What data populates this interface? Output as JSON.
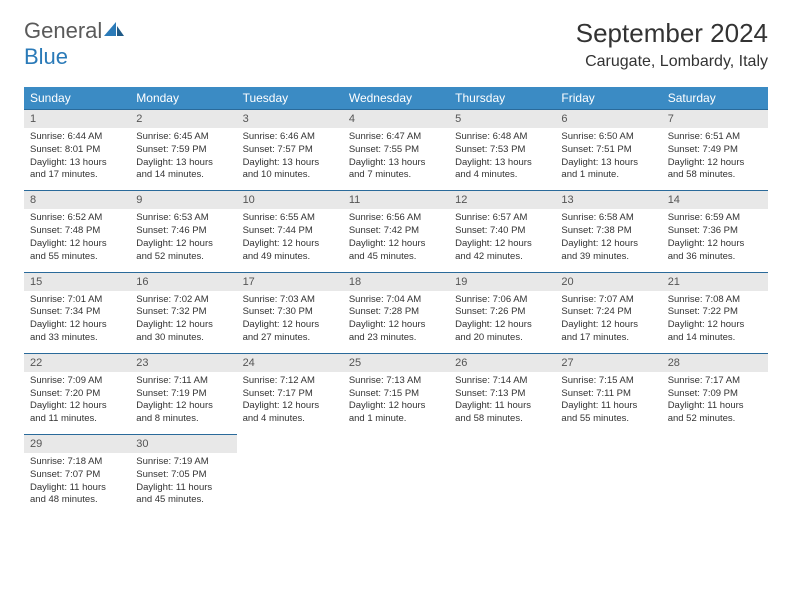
{
  "logo": {
    "text1": "General",
    "text2": "Blue"
  },
  "title": "September 2024",
  "location": "Carugate, Lombardy, Italy",
  "colors": {
    "header_bg": "#3b8bc4",
    "header_text": "#ffffff",
    "daynum_bg": "#e8e8e8",
    "daynum_text": "#555555",
    "cell_bg": "#ffffff",
    "cell_text": "#333333",
    "border": "#2a6a9a",
    "logo_gray": "#5a5a5a",
    "logo_blue": "#2a7ab8"
  },
  "fonts": {
    "title_size": 26,
    "location_size": 16,
    "header_size": 12,
    "daynum_size": 11,
    "cell_size": 9.5
  },
  "dayHeaders": [
    "Sunday",
    "Monday",
    "Tuesday",
    "Wednesday",
    "Thursday",
    "Friday",
    "Saturday"
  ],
  "weeks": [
    {
      "nums": [
        "1",
        "2",
        "3",
        "4",
        "5",
        "6",
        "7"
      ],
      "cells": [
        {
          "sunrise": "Sunrise: 6:44 AM",
          "sunset": "Sunset: 8:01 PM",
          "daylight": "Daylight: 13 hours and 17 minutes."
        },
        {
          "sunrise": "Sunrise: 6:45 AM",
          "sunset": "Sunset: 7:59 PM",
          "daylight": "Daylight: 13 hours and 14 minutes."
        },
        {
          "sunrise": "Sunrise: 6:46 AM",
          "sunset": "Sunset: 7:57 PM",
          "daylight": "Daylight: 13 hours and 10 minutes."
        },
        {
          "sunrise": "Sunrise: 6:47 AM",
          "sunset": "Sunset: 7:55 PM",
          "daylight": "Daylight: 13 hours and 7 minutes."
        },
        {
          "sunrise": "Sunrise: 6:48 AM",
          "sunset": "Sunset: 7:53 PM",
          "daylight": "Daylight: 13 hours and 4 minutes."
        },
        {
          "sunrise": "Sunrise: 6:50 AM",
          "sunset": "Sunset: 7:51 PM",
          "daylight": "Daylight: 13 hours and 1 minute."
        },
        {
          "sunrise": "Sunrise: 6:51 AM",
          "sunset": "Sunset: 7:49 PM",
          "daylight": "Daylight: 12 hours and 58 minutes."
        }
      ]
    },
    {
      "nums": [
        "8",
        "9",
        "10",
        "11",
        "12",
        "13",
        "14"
      ],
      "cells": [
        {
          "sunrise": "Sunrise: 6:52 AM",
          "sunset": "Sunset: 7:48 PM",
          "daylight": "Daylight: 12 hours and 55 minutes."
        },
        {
          "sunrise": "Sunrise: 6:53 AM",
          "sunset": "Sunset: 7:46 PM",
          "daylight": "Daylight: 12 hours and 52 minutes."
        },
        {
          "sunrise": "Sunrise: 6:55 AM",
          "sunset": "Sunset: 7:44 PM",
          "daylight": "Daylight: 12 hours and 49 minutes."
        },
        {
          "sunrise": "Sunrise: 6:56 AM",
          "sunset": "Sunset: 7:42 PM",
          "daylight": "Daylight: 12 hours and 45 minutes."
        },
        {
          "sunrise": "Sunrise: 6:57 AM",
          "sunset": "Sunset: 7:40 PM",
          "daylight": "Daylight: 12 hours and 42 minutes."
        },
        {
          "sunrise": "Sunrise: 6:58 AM",
          "sunset": "Sunset: 7:38 PM",
          "daylight": "Daylight: 12 hours and 39 minutes."
        },
        {
          "sunrise": "Sunrise: 6:59 AM",
          "sunset": "Sunset: 7:36 PM",
          "daylight": "Daylight: 12 hours and 36 minutes."
        }
      ]
    },
    {
      "nums": [
        "15",
        "16",
        "17",
        "18",
        "19",
        "20",
        "21"
      ],
      "cells": [
        {
          "sunrise": "Sunrise: 7:01 AM",
          "sunset": "Sunset: 7:34 PM",
          "daylight": "Daylight: 12 hours and 33 minutes."
        },
        {
          "sunrise": "Sunrise: 7:02 AM",
          "sunset": "Sunset: 7:32 PM",
          "daylight": "Daylight: 12 hours and 30 minutes."
        },
        {
          "sunrise": "Sunrise: 7:03 AM",
          "sunset": "Sunset: 7:30 PM",
          "daylight": "Daylight: 12 hours and 27 minutes."
        },
        {
          "sunrise": "Sunrise: 7:04 AM",
          "sunset": "Sunset: 7:28 PM",
          "daylight": "Daylight: 12 hours and 23 minutes."
        },
        {
          "sunrise": "Sunrise: 7:06 AM",
          "sunset": "Sunset: 7:26 PM",
          "daylight": "Daylight: 12 hours and 20 minutes."
        },
        {
          "sunrise": "Sunrise: 7:07 AM",
          "sunset": "Sunset: 7:24 PM",
          "daylight": "Daylight: 12 hours and 17 minutes."
        },
        {
          "sunrise": "Sunrise: 7:08 AM",
          "sunset": "Sunset: 7:22 PM",
          "daylight": "Daylight: 12 hours and 14 minutes."
        }
      ]
    },
    {
      "nums": [
        "22",
        "23",
        "24",
        "25",
        "26",
        "27",
        "28"
      ],
      "cells": [
        {
          "sunrise": "Sunrise: 7:09 AM",
          "sunset": "Sunset: 7:20 PM",
          "daylight": "Daylight: 12 hours and 11 minutes."
        },
        {
          "sunrise": "Sunrise: 7:11 AM",
          "sunset": "Sunset: 7:19 PM",
          "daylight": "Daylight: 12 hours and 8 minutes."
        },
        {
          "sunrise": "Sunrise: 7:12 AM",
          "sunset": "Sunset: 7:17 PM",
          "daylight": "Daylight: 12 hours and 4 minutes."
        },
        {
          "sunrise": "Sunrise: 7:13 AM",
          "sunset": "Sunset: 7:15 PM",
          "daylight": "Daylight: 12 hours and 1 minute."
        },
        {
          "sunrise": "Sunrise: 7:14 AM",
          "sunset": "Sunset: 7:13 PM",
          "daylight": "Daylight: 11 hours and 58 minutes."
        },
        {
          "sunrise": "Sunrise: 7:15 AM",
          "sunset": "Sunset: 7:11 PM",
          "daylight": "Daylight: 11 hours and 55 minutes."
        },
        {
          "sunrise": "Sunrise: 7:17 AM",
          "sunset": "Sunset: 7:09 PM",
          "daylight": "Daylight: 11 hours and 52 minutes."
        }
      ]
    },
    {
      "nums": [
        "29",
        "30",
        "",
        "",
        "",
        "",
        ""
      ],
      "cells": [
        {
          "sunrise": "Sunrise: 7:18 AM",
          "sunset": "Sunset: 7:07 PM",
          "daylight": "Daylight: 11 hours and 48 minutes."
        },
        {
          "sunrise": "Sunrise: 7:19 AM",
          "sunset": "Sunset: 7:05 PM",
          "daylight": "Daylight: 11 hours and 45 minutes."
        },
        null,
        null,
        null,
        null,
        null
      ]
    }
  ]
}
